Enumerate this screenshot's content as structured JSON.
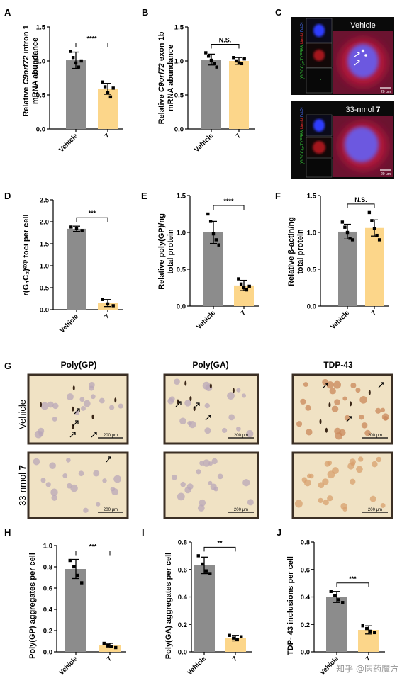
{
  "colors": {
    "vehicle_bar": "#8c8c8c",
    "drug_bar": "#fcd68a",
    "micro_bg": "#f0e2c4",
    "fluor_bg": "#b7172d"
  },
  "panels": {
    "A": {
      "letter": "A",
      "ylabel_pre": "Relative ",
      "ylabel_ital": "C9orf72",
      "ylabel_post": " intron 1",
      "ylabel2": "mRNA abundance",
      "ticks": [
        "0.0",
        "0.5",
        "1.0",
        "1.5"
      ],
      "sig": "****"
    },
    "B": {
      "letter": "B",
      "ylabel_pre": "Relative ",
      "ylabel_ital": "C9orf72",
      "ylabel_post": " exon 1b",
      "ylabel2": "mRNA abundance",
      "ticks": [
        "0.0",
        "0.5",
        "1.0",
        "1.5"
      ],
      "sig": "N.S."
    },
    "C": {
      "letter": "C",
      "top_label": "Vehicle",
      "bottom_label_pre": "33-nmol ",
      "bottom_label_num": "7",
      "side_green": "(GGCC)₂-TYE563,",
      "side_red": "NeuN,",
      "side_blue": "DAPI",
      "scale": "20 μm"
    },
    "D": {
      "letter": "D",
      "ylabel": "r(G₄C₂)ᵉˣᵖ foci per cell",
      "ticks": [
        "0.0",
        "0.5",
        "1.0",
        "1.5",
        "2.0",
        "2.5"
      ],
      "sig": "***"
    },
    "E": {
      "letter": "E",
      "ylabel1": "Relative poly(GP)/ng",
      "ylabel2": "total protein",
      "ticks": [
        "0.0",
        "0.5",
        "1.0",
        "1.5"
      ],
      "sig": "****"
    },
    "F": {
      "letter": "F",
      "ylabel1": "Relative β-actin/ng",
      "ylabel2": "total protein",
      "ticks": [
        "0.0",
        "0.5",
        "1.0",
        "1.5"
      ],
      "sig": "N.S."
    },
    "G": {
      "letter": "G",
      "col_titles": [
        "Poly(GP)",
        "Poly(GA)",
        "TDP-43"
      ],
      "row_vehicle": "Vehicle",
      "row_drug_pre": "33-nmol ",
      "row_drug_num": "7",
      "scale": "200 μm"
    },
    "H": {
      "letter": "H",
      "ylabel": "Poly(GP) aggregates per cell",
      "ticks": [
        "0.0",
        "0.2",
        "0.4",
        "0.6",
        "0.8",
        "1.0"
      ],
      "sig": "***"
    },
    "I": {
      "letter": "I",
      "ylabel": "Poly(GA) aggregates per cell",
      "ticks": [
        "0.0",
        "0.2",
        "0.4",
        "0.6",
        "0.8"
      ],
      "sig": "**"
    },
    "J": {
      "letter": "J",
      "ylabel": "TDP- 43 inclusions per cell",
      "ticks": [
        "0.0",
        "0.2",
        "0.4",
        "0.6",
        "0.8"
      ],
      "sig": "***"
    }
  },
  "watermark": "知乎 @医药魔方",
  "chart_data": [
    {
      "id": "A",
      "type": "bar",
      "categories": [
        "Vehicle",
        "7"
      ],
      "values": [
        1.01,
        0.59
      ],
      "errors": [
        0.12,
        0.08
      ],
      "ylim": [
        0,
        1.5
      ],
      "points": [
        [
          1.14,
          1.05,
          0.97,
          0.91,
          1.0
        ],
        [
          0.69,
          0.62,
          0.53,
          0.47,
          0.6
        ]
      ]
    },
    {
      "id": "B",
      "type": "bar",
      "categories": [
        "Vehicle",
        "7"
      ],
      "values": [
        1.02,
        1.0
      ],
      "errors": [
        0.08,
        0.05
      ],
      "ylim": [
        0,
        1.5
      ],
      "points": [
        [
          1.12,
          1.07,
          1.01,
          0.96,
          0.91
        ],
        [
          1.05,
          1.0,
          0.97,
          0.96,
          1.03
        ]
      ]
    },
    {
      "id": "D",
      "type": "bar",
      "categories": [
        "Vehicle",
        "7"
      ],
      "values": [
        1.84,
        0.15
      ],
      "errors": [
        0.06,
        0.08
      ],
      "ylim": [
        0,
        2.5
      ],
      "points": [
        [
          1.88,
          1.85,
          1.8
        ],
        [
          0.23,
          0.13,
          0.09
        ]
      ]
    },
    {
      "id": "E",
      "type": "bar",
      "categories": [
        "Vehicle",
        "7"
      ],
      "values": [
        1.0,
        0.28
      ],
      "errors": [
        0.15,
        0.07
      ],
      "ylim": [
        0,
        1.5
      ],
      "points": [
        [
          1.25,
          1.15,
          0.98,
          0.9,
          0.83
        ],
        [
          0.37,
          0.3,
          0.25,
          0.22,
          0.27
        ]
      ]
    },
    {
      "id": "F",
      "type": "bar",
      "categories": [
        "Vehicle",
        "7"
      ],
      "values": [
        1.01,
        1.06
      ],
      "errors": [
        0.1,
        0.11
      ],
      "ylim": [
        0,
        1.5
      ],
      "points": [
        [
          1.14,
          1.07,
          1.0,
          0.92,
          0.9
        ],
        [
          1.27,
          1.16,
          1.05,
          0.96,
          0.9
        ]
      ]
    },
    {
      "id": "H",
      "type": "bar",
      "categories": [
        "Vehicle",
        "7"
      ],
      "values": [
        0.78,
        0.06
      ],
      "errors": [
        0.09,
        0.02
      ],
      "ylim": [
        0,
        1.0
      ],
      "points": [
        [
          0.86,
          0.8,
          0.72,
          0.65
        ],
        [
          0.08,
          0.06,
          0.05,
          0.04
        ]
      ]
    },
    {
      "id": "I",
      "type": "bar",
      "categories": [
        "Vehicle",
        "7"
      ],
      "values": [
        0.63,
        0.1
      ],
      "errors": [
        0.06,
        0.02
      ],
      "ylim": [
        0,
        0.8
      ],
      "points": [
        [
          0.7,
          0.64,
          0.59,
          0.57
        ],
        [
          0.12,
          0.1,
          0.09,
          0.11
        ]
      ]
    },
    {
      "id": "J",
      "type": "bar",
      "categories": [
        "Vehicle",
        "7"
      ],
      "values": [
        0.4,
        0.16
      ],
      "errors": [
        0.04,
        0.03
      ],
      "ylim": [
        0,
        0.8
      ],
      "points": [
        [
          0.44,
          0.41,
          0.38,
          0.36
        ],
        [
          0.19,
          0.17,
          0.15,
          0.14
        ]
      ]
    }
  ]
}
